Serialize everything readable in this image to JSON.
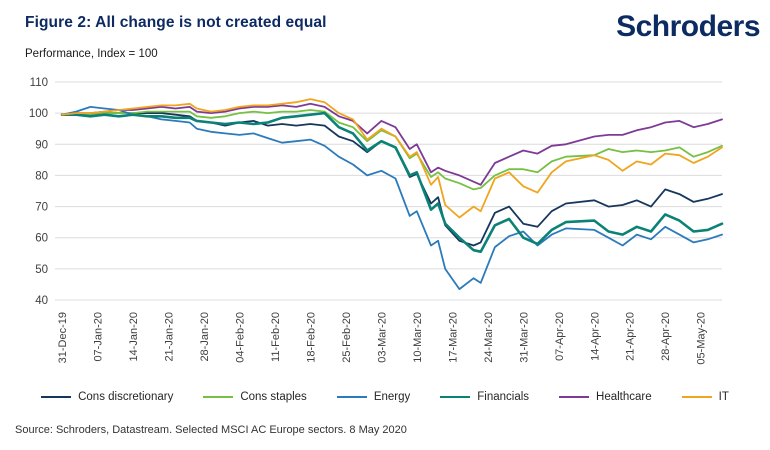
{
  "header": {
    "title": "Figure 2: All change is not created equal",
    "subtitle": "Performance, Index = 100",
    "logo": "Schroders",
    "brand_color": "#0c2b63"
  },
  "footer": {
    "source": "Source: Schroders, Datastream. Selected MSCI AC Europe sectors. 8 May 2020"
  },
  "chart_data": {
    "type": "line",
    "title": "Figure 2: All change is not created equal",
    "ylabel": "Performance, Index = 100",
    "ylim": [
      40,
      110
    ],
    "yticks": [
      110,
      100,
      90,
      80,
      70,
      60,
      50,
      40
    ],
    "grid": "horizontal-only",
    "grid_color": "#dcdcdc",
    "legend_position": "bottom",
    "x_axis_unit": "weekday index from 31-Dec-19",
    "x_max": 93,
    "x_tick_positions": [
      0,
      5,
      10,
      15,
      20,
      25,
      30,
      35,
      40,
      45,
      50,
      55,
      60,
      65,
      70,
      75,
      80,
      85,
      90
    ],
    "x_tick_labels": [
      "31-Dec-19",
      "07-Jan-20",
      "14-Jan-20",
      "21-Jan-20",
      "28-Jan-20",
      "04-Feb-20",
      "11-Feb-20",
      "18-Feb-20",
      "25-Feb-20",
      "03-Mar-20",
      "10-Mar-20",
      "17-Mar-20",
      "24-Mar-20",
      "31-Mar-20",
      "07-Apr-20",
      "14-Apr-20",
      "21-Apr-20",
      "28-Apr-20",
      "05-May-20"
    ],
    "x": [
      0,
      2,
      4,
      6,
      8,
      10,
      12,
      14,
      16,
      18,
      19,
      21,
      23,
      25,
      27,
      29,
      31,
      33,
      35,
      37,
      39,
      41,
      43,
      45,
      47,
      49,
      50,
      52,
      53,
      54,
      56,
      58,
      59,
      61,
      63,
      65,
      67,
      69,
      71,
      75,
      77,
      79,
      81,
      83,
      85,
      87,
      89,
      91,
      93
    ],
    "series": [
      {
        "name": "Cons discretionary",
        "color": "#16365c",
        "width": 1.8,
        "values": [
          99.5,
          99.5,
          99.5,
          100,
          100,
          100,
          100,
          100,
          99.5,
          99,
          97.5,
          97,
          96,
          97,
          97.5,
          96,
          96.5,
          96,
          96.5,
          96,
          92.5,
          91,
          87.5,
          91,
          89,
          79.5,
          80.5,
          71,
          73,
          64,
          59,
          57.5,
          58.5,
          68,
          70,
          64.5,
          63.5,
          68.5,
          71,
          72,
          70,
          70.5,
          72,
          70,
          75.5,
          74,
          71.5,
          72.5,
          74
        ]
      },
      {
        "name": "Cons staples",
        "color": "#76c043",
        "width": 1.8,
        "values": [
          99.5,
          99.5,
          99.5,
          100,
          100,
          100,
          100.5,
          100.5,
          100.5,
          100.5,
          99,
          98.5,
          99,
          100,
          100.5,
          100,
          100.5,
          100.5,
          101,
          100.5,
          97,
          95.5,
          91,
          94.5,
          92.5,
          85.5,
          87,
          79.5,
          81,
          79,
          77.5,
          75.5,
          76,
          80,
          82,
          82,
          81,
          84.5,
          86,
          86.5,
          88.5,
          87.5,
          88,
          87.5,
          88,
          89,
          86,
          87.5,
          89.5
        ]
      },
      {
        "name": "Energy",
        "color": "#2b7bbc",
        "width": 1.8,
        "values": [
          99.5,
          100.5,
          102,
          101.5,
          101,
          99.5,
          99,
          98,
          97.5,
          97,
          95,
          94,
          93.5,
          93,
          93.5,
          92,
          90.5,
          91,
          91.5,
          89.5,
          86,
          83.5,
          80,
          81.5,
          79,
          67,
          68.5,
          57.5,
          59,
          50,
          43.5,
          47,
          45.5,
          57,
          60.5,
          62,
          57.5,
          61,
          63,
          62.5,
          60,
          57.5,
          61,
          59.5,
          63.5,
          61,
          58.5,
          59.5,
          61
        ]
      },
      {
        "name": "Financials",
        "color": "#0b8276",
        "width": 2.6,
        "values": [
          99.5,
          99.5,
          99,
          99.5,
          99,
          99.5,
          99,
          99,
          98.5,
          98.5,
          97.5,
          97,
          96.5,
          97,
          96.5,
          97,
          98.5,
          99,
          99.5,
          100,
          95.5,
          93.5,
          88,
          91,
          89,
          80,
          81,
          69,
          71,
          64.5,
          60,
          56,
          55.5,
          64,
          66,
          60,
          58,
          62.5,
          65,
          65.5,
          62,
          61,
          63.5,
          62,
          67.5,
          65.5,
          62,
          62.5,
          64.5
        ]
      },
      {
        "name": "Healthcare",
        "color": "#7e3a96",
        "width": 1.8,
        "values": [
          99.5,
          100,
          100,
          100.5,
          101,
          101,
          101.5,
          102,
          101.5,
          102,
          100.5,
          100,
          100.5,
          101.5,
          102,
          102,
          102.5,
          102,
          103,
          102,
          99,
          97.5,
          93.5,
          97.5,
          95.5,
          88.5,
          90,
          81,
          82.5,
          81.5,
          80,
          78,
          77,
          84,
          86,
          88,
          87,
          89.5,
          90,
          92.5,
          93,
          93,
          94.5,
          95.5,
          97,
          97.5,
          95.5,
          96.5,
          98
        ]
      },
      {
        "name": "IT",
        "color": "#efa51f",
        "width": 1.8,
        "values": [
          99.5,
          100,
          100,
          100.5,
          101,
          101.5,
          102,
          102.5,
          102.5,
          103,
          101.5,
          100.5,
          101,
          102,
          102.5,
          102.5,
          103,
          103.5,
          104.5,
          103.5,
          100,
          98,
          91.5,
          95,
          92.5,
          86,
          87.5,
          77,
          79.5,
          70.5,
          66.5,
          70,
          68.5,
          79,
          81,
          76.5,
          74.5,
          81,
          84.5,
          86.5,
          85,
          81.5,
          84.5,
          83.5,
          87,
          86.5,
          84,
          86,
          89
        ]
      }
    ]
  }
}
